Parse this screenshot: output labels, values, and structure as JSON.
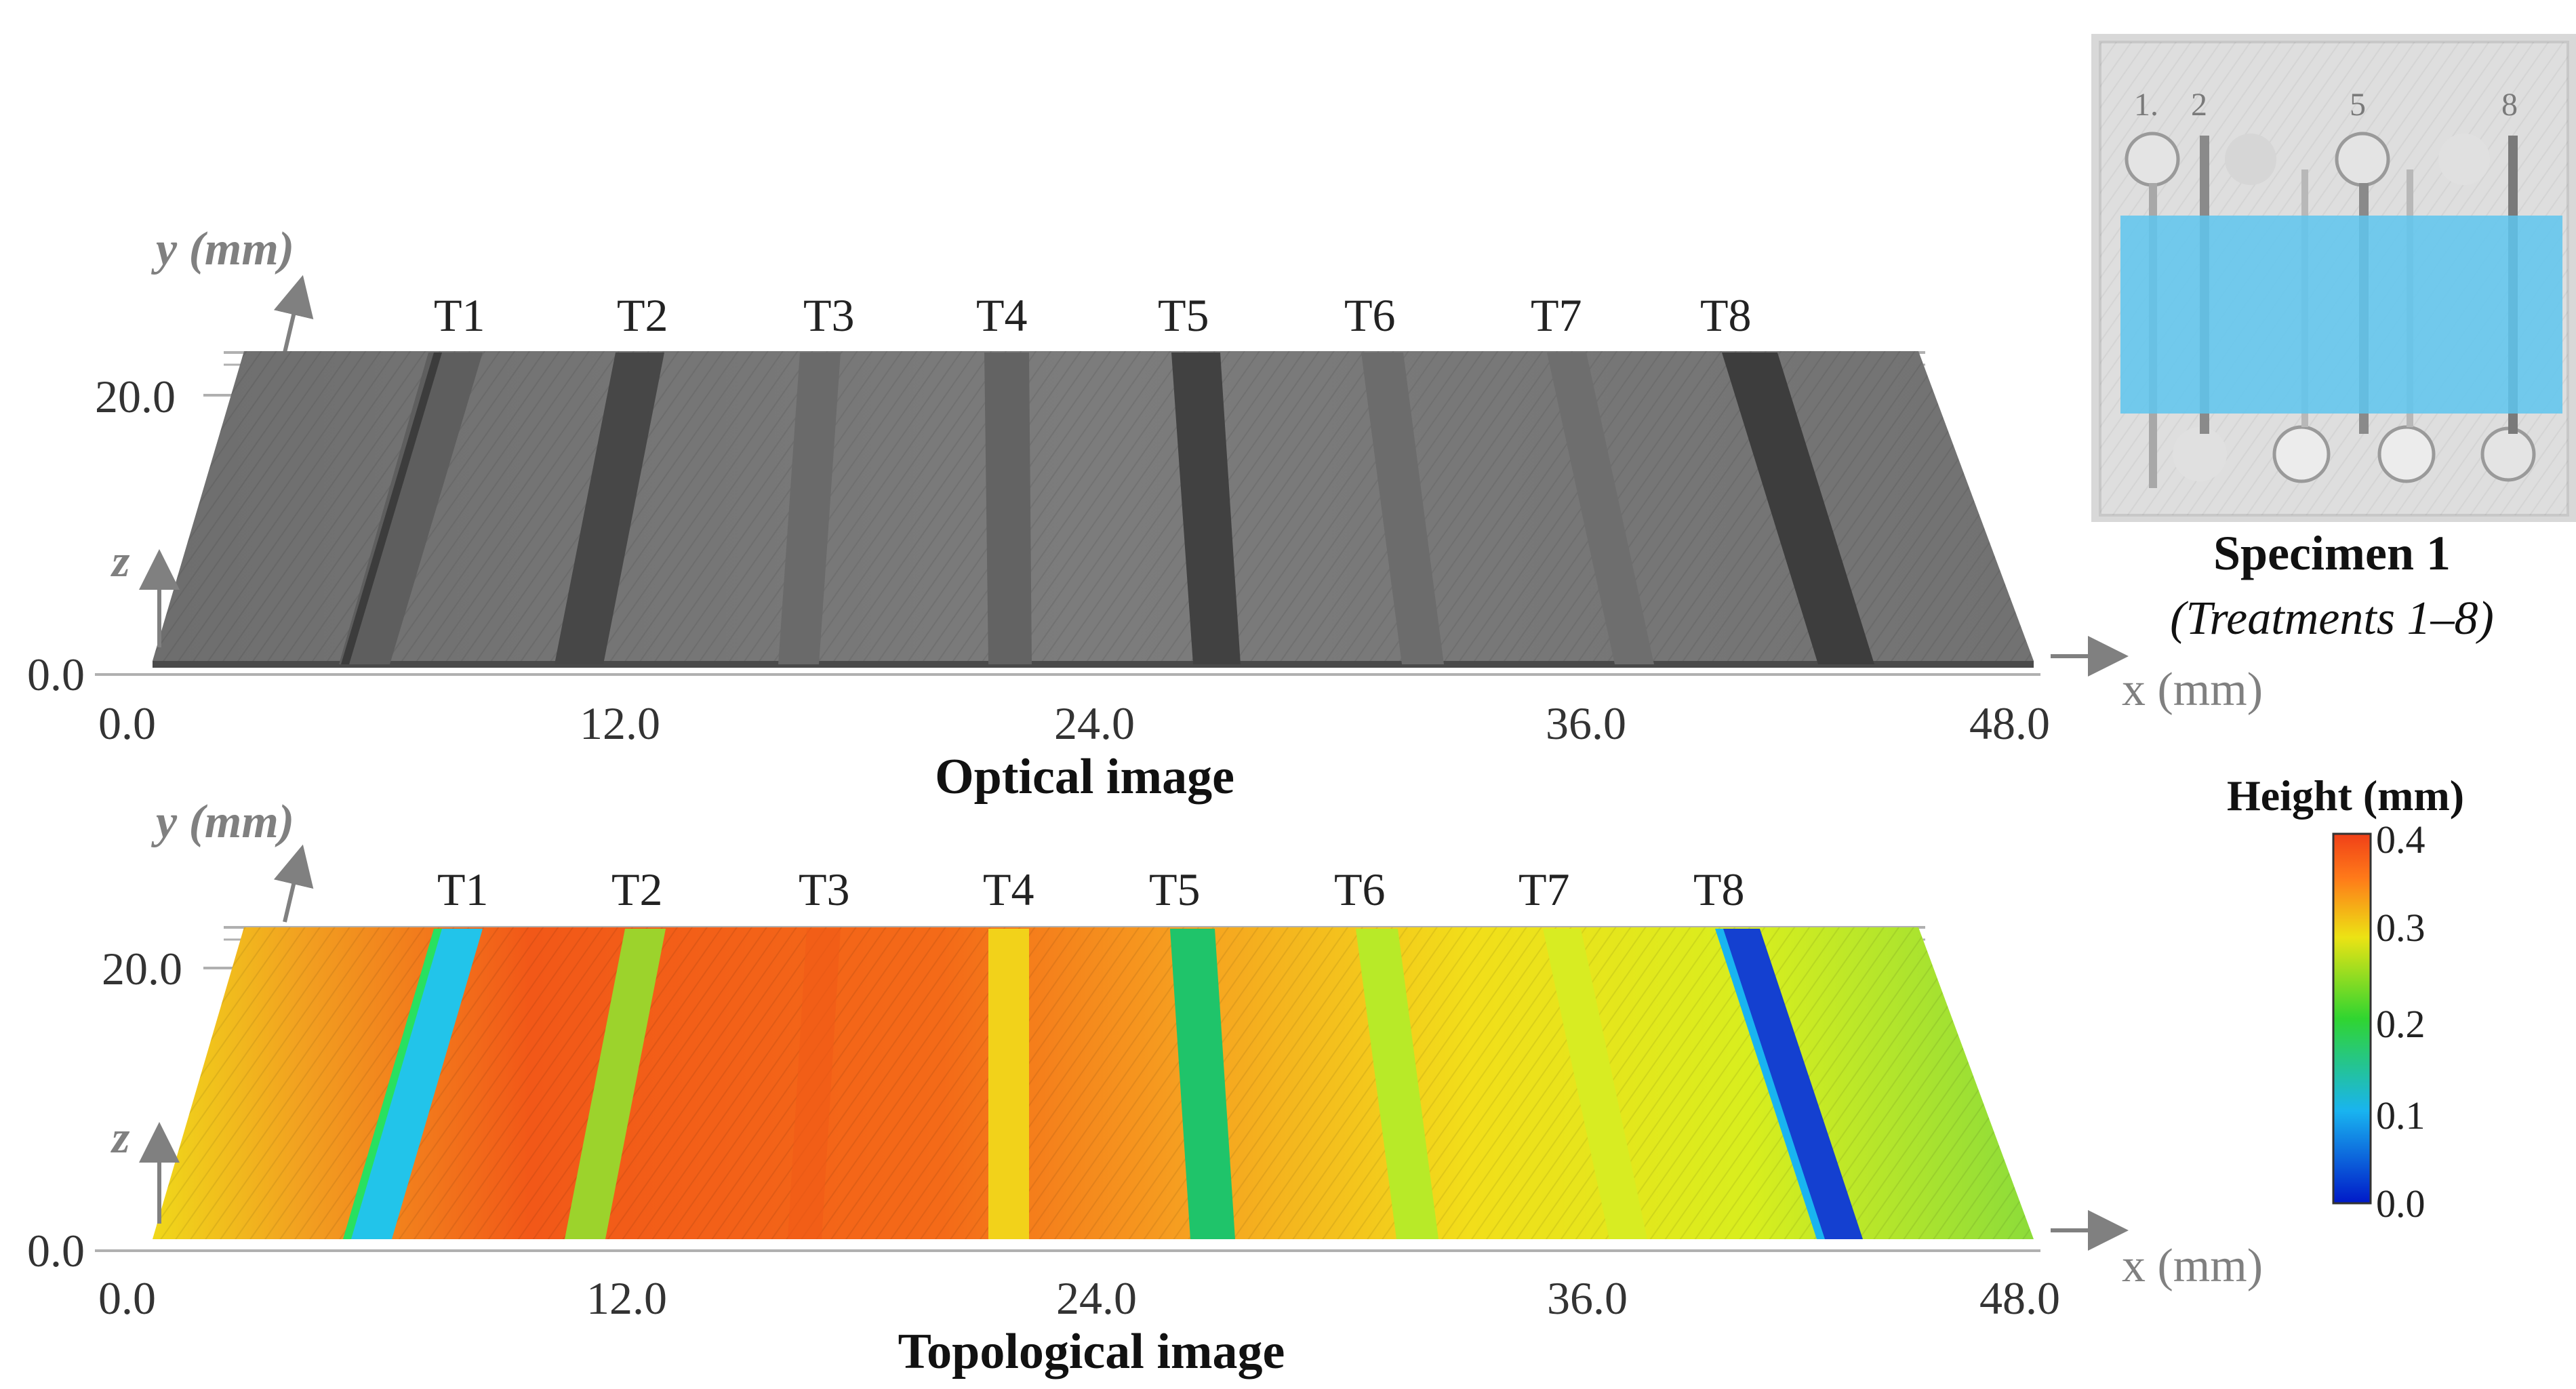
{
  "panels": {
    "optical": {
      "caption": "Optical image",
      "y_axis_label": "y (mm)",
      "z_axis_label": "z",
      "x_axis_label": "x (mm)",
      "y_ticks": [
        "0.0",
        "20.0"
      ],
      "x_ticks": [
        "0.0",
        "12.0",
        "24.0",
        "36.0",
        "48.0"
      ],
      "treatments": [
        "T1",
        "T2",
        "T3",
        "T4",
        "T5",
        "T6",
        "T7",
        "T8"
      ]
    },
    "topological": {
      "caption": "Topological image",
      "y_axis_label": "y (mm)",
      "z_axis_label": "z",
      "x_axis_label": "x (mm)",
      "y_ticks": [
        "0.0",
        "20.0"
      ],
      "x_ticks": [
        "0.0",
        "12.0",
        "24.0",
        "36.0",
        "48.0"
      ],
      "treatments": [
        "T1",
        "T2",
        "T3",
        "T4",
        "T5",
        "T6",
        "T7",
        "T8"
      ]
    }
  },
  "specimen": {
    "title": "Specimen 1",
    "subtitle": "(Treatments 1–8)",
    "photo_labels": [
      "1.",
      "2",
      "5",
      "8"
    ]
  },
  "colorbar": {
    "title": "Height (mm)",
    "ticks": [
      "0.4",
      "0.3",
      "0.2",
      "0.1",
      "0.0"
    ],
    "range": [
      0.0,
      0.4
    ],
    "colors": [
      "#0019c8",
      "#19b4f0",
      "#30d530",
      "#ece314",
      "#ff7a19",
      "#f04018"
    ]
  },
  "colors": {
    "optical_surface": "#7a7a7a",
    "highlight": "#5ec6ee",
    "axis_gray": "#888888"
  }
}
